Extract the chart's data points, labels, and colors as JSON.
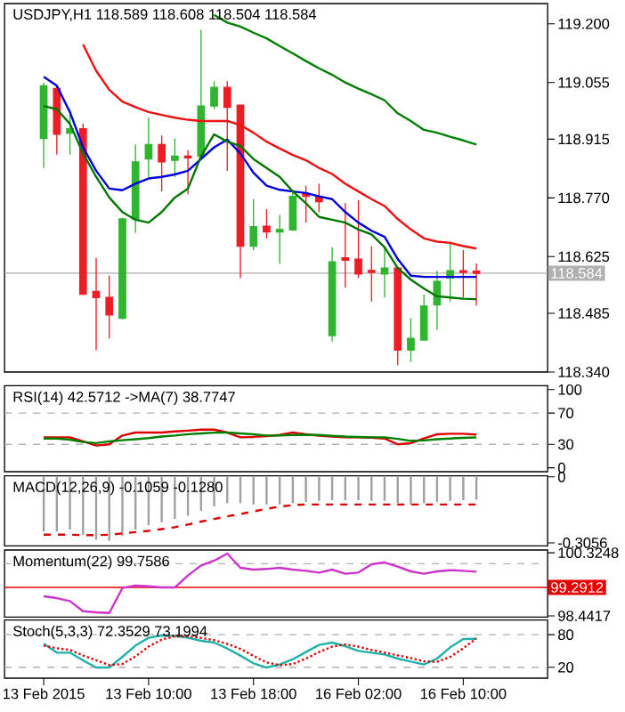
{
  "chart_data": [
    {
      "type": "candlestick",
      "title": "USDJPY,H1  118.589 118.608 118.504 118.584",
      "categories": [
        null,
        null,
        null,
        null,
        null,
        null,
        null,
        null,
        null,
        null,
        null,
        null,
        null,
        null,
        null,
        null,
        null,
        null,
        null,
        null,
        null,
        null,
        null,
        null,
        null,
        null,
        null,
        null,
        null,
        null,
        null,
        null,
        null,
        null
      ],
      "ohlc": [
        [
          118.917,
          119.054,
          118.844,
          119.047
        ],
        [
          119.04,
          119.047,
          118.877,
          118.927
        ],
        [
          118.93,
          118.989,
          118.877,
          118.941
        ],
        [
          118.941,
          118.953,
          118.53,
          118.532
        ],
        [
          118.539,
          118.622,
          118.394,
          118.524
        ],
        [
          118.524,
          118.578,
          118.423,
          118.481
        ],
        [
          118.473,
          118.721,
          118.47,
          118.718
        ],
        [
          118.718,
          118.902,
          118.684,
          118.859
        ],
        [
          118.866,
          118.968,
          118.822,
          118.902
        ],
        [
          118.902,
          118.924,
          118.786,
          118.859
        ],
        [
          118.863,
          118.917,
          118.822,
          118.873
        ],
        [
          118.873,
          118.888,
          118.779,
          118.869
        ],
        [
          118.873,
          119.185,
          118.869,
          118.997
        ],
        [
          118.997,
          119.058,
          118.989,
          119.043
        ],
        [
          119.043,
          119.058,
          118.837,
          118.994
        ],
        [
          118.999,
          118.999,
          118.572,
          118.651
        ],
        [
          118.651,
          118.767,
          118.641,
          118.699
        ],
        [
          118.7,
          118.742,
          118.67,
          118.686
        ],
        [
          118.686,
          118.728,
          118.607,
          118.692
        ],
        [
          118.691,
          118.786,
          118.689,
          118.774
        ],
        [
          118.781,
          118.8,
          118.709,
          118.774
        ],
        [
          118.774,
          118.805,
          118.735,
          118.761
        ],
        [
          118.43,
          118.648,
          118.415,
          118.612
        ],
        [
          118.622,
          118.757,
          118.549,
          118.616
        ],
        [
          118.619,
          118.764,
          118.572,
          118.582
        ],
        [
          118.591,
          118.651,
          118.514,
          118.586
        ],
        [
          118.582,
          118.651,
          118.524,
          118.597
        ],
        [
          118.597,
          118.597,
          118.357,
          118.394
        ],
        [
          118.394,
          118.473,
          118.365,
          118.423
        ],
        [
          118.419,
          118.532,
          118.419,
          118.503
        ],
        [
          118.506,
          118.59,
          118.444,
          118.564
        ],
        [
          118.572,
          118.662,
          118.514,
          118.59
        ],
        [
          118.59,
          118.641,
          118.524,
          118.586
        ],
        [
          118.589,
          118.608,
          118.504,
          118.584
        ]
      ],
      "colors": [
        "#2fb52f",
        "#ee1c24",
        "#2fb52f",
        "#ee1c24",
        "#ee1c24",
        "#ee1c24",
        "#2fb52f",
        "#2fb52f",
        "#2fb52f",
        "#ee1c24",
        "#2fb52f",
        "#ee1c24",
        "#2fb52f",
        "#2fb52f",
        "#ee1c24",
        "#ee1c24",
        "#2fb52f",
        "#ee1c24",
        "#2fb52f",
        "#2fb52f",
        "#ee1c24",
        "#ee1c24",
        "#2fb52f",
        "#ee1c24",
        "#ee1c24",
        "#ee1c24",
        "#2fb52f",
        "#ee1c24",
        "#2fb52f",
        "#2fb52f",
        "#2fb52f",
        "#2fb52f",
        "#ee1c24",
        "#ee1c24"
      ],
      "series": [
        {
          "type": "line",
          "color": "#ee1111",
          "values": [
            null,
            null,
            null,
            119.149,
            119.084,
            119.037,
            119.008,
            118.994,
            118.982,
            118.975,
            118.968,
            118.963,
            118.96,
            118.96,
            118.96,
            118.95,
            118.931,
            118.909,
            118.892,
            118.876,
            118.863,
            118.844,
            118.829,
            118.805,
            118.786,
            118.767,
            118.75,
            118.718,
            118.692,
            118.67,
            118.662,
            118.659,
            118.651,
            118.645
          ]
        },
        {
          "type": "line",
          "color": "#0000dd",
          "values": [
            119.069,
            119.047,
            118.982,
            118.895,
            118.837,
            118.793,
            118.789,
            118.805,
            118.818,
            118.822,
            118.828,
            118.837,
            118.866,
            118.895,
            118.914,
            118.88,
            118.832,
            118.8,
            118.79,
            118.786,
            118.782,
            118.774,
            118.767,
            118.735,
            118.709,
            118.689,
            118.674,
            118.619,
            118.578,
            118.575,
            118.575,
            118.575,
            118.575,
            118.575
          ]
        },
        {
          "type": "line",
          "color": "#007700",
          "values": [
            118.997,
            118.989,
            118.953,
            118.88,
            118.822,
            118.771,
            118.735,
            118.716,
            118.709,
            118.735,
            118.771,
            118.793,
            118.873,
            118.927,
            118.909,
            118.898,
            118.866,
            118.844,
            118.822,
            118.786,
            118.757,
            118.723,
            118.716,
            118.709,
            118.692,
            118.68,
            118.648,
            118.597,
            118.568,
            118.546,
            118.527,
            118.524,
            118.521,
            118.52
          ]
        },
        {
          "type": "line",
          "color": "#008000",
          "values": [
            null,
            null,
            null,
            null,
            null,
            null,
            null,
            null,
            null,
            null,
            null,
            null,
            null,
            119.222,
            119.203,
            119.193,
            119.178,
            119.164,
            119.145,
            119.127,
            119.108,
            119.09,
            119.074,
            119.055,
            119.04,
            119.026,
            119.011,
            118.979,
            118.96,
            118.938,
            118.931,
            118.921,
            118.912,
            118.902
          ]
        }
      ],
      "ylim": [
        118.34,
        119.25
      ],
      "yticks": [
        {
          "value": 118.34,
          "label": "118.340"
        },
        {
          "value": 118.485,
          "label": "118.485"
        },
        {
          "value": 118.625,
          "label": "118.625"
        },
        {
          "value": 118.77,
          "label": "118.770"
        },
        {
          "value": 118.915,
          "label": "118.915"
        },
        {
          "value": 119.055,
          "label": "119.055"
        },
        {
          "value": 119.2,
          "label": "119.200"
        }
      ],
      "ref_lines": [
        {
          "axis": "y",
          "value": 118.584,
          "label": "118.584",
          "color": "#b0b0b0"
        }
      ],
      "tick_labels": "y"
    },
    {
      "type": "line",
      "title": "RSI(14) 42.5712  ->MA(7) 38.7747",
      "categories": [
        null,
        null,
        null,
        null,
        null,
        null,
        null,
        null,
        null,
        null,
        null,
        null,
        null,
        null,
        null,
        null,
        null,
        null,
        null,
        null,
        null,
        null,
        null,
        null,
        null,
        null,
        null,
        null,
        null,
        null,
        null,
        null,
        null,
        null
      ],
      "series": [
        {
          "color": "#dd0000",
          "values": [
            39.0,
            39.0,
            39.0,
            33.8,
            28.5,
            30.0,
            41.3,
            45.1,
            45.1,
            45.1,
            46.5,
            47.5,
            48.8,
            48.8,
            45.1,
            39.0,
            39.5,
            40.6,
            42.0,
            45.1,
            42.9,
            41.0,
            40.0,
            39.0,
            39.0,
            38.5,
            37.5,
            30.0,
            31.6,
            37.5,
            42.9,
            43.6,
            43.6,
            42.6
          ]
        },
        {
          "color": "#008000",
          "values": [
            37.5,
            37.5,
            36.0,
            33.0,
            31.6,
            33.8,
            35.3,
            36.5,
            38.0,
            40.0,
            41.3,
            43.0,
            44.0,
            45.0,
            45.1,
            44.0,
            42.9,
            41.3,
            41.3,
            42.0,
            42.3,
            42.0,
            41.0,
            40.0,
            39.5,
            39.0,
            39.0,
            37.0,
            34.5,
            35.0,
            36.5,
            37.5,
            38.3,
            38.8
          ]
        }
      ],
      "ylim": [
        -5,
        105
      ],
      "yticks": [
        0,
        30,
        70,
        100
      ],
      "ref_lines": [
        {
          "axis": "y",
          "value": 70,
          "color": "#b0b0b0",
          "line_style": "dashed"
        },
        {
          "axis": "y",
          "value": 30,
          "color": "#b0b0b0",
          "line_style": "dashed"
        }
      ],
      "tick_labels": "y"
    },
    {
      "type": "bar",
      "title": "MACD(12,26,9) -0.1059 -0.1280",
      "categories": [
        null,
        null,
        null,
        null,
        null,
        null,
        null,
        null,
        null,
        null,
        null,
        null,
        null,
        null,
        null,
        null,
        null,
        null,
        null,
        null,
        null,
        null,
        null,
        null,
        null,
        null,
        null,
        null,
        null,
        null,
        null,
        null,
        null,
        null
      ],
      "series": [
        {
          "color": "#a0a0a0",
          "values": [
            -0.253,
            -0.253,
            -0.244,
            -0.268,
            -0.291,
            -0.297,
            -0.274,
            -0.244,
            -0.224,
            -0.21,
            -0.195,
            -0.18,
            -0.157,
            -0.137,
            -0.122,
            -0.122,
            -0.128,
            -0.128,
            -0.128,
            -0.122,
            -0.116,
            -0.111,
            -0.108,
            -0.108,
            -0.108,
            -0.111,
            -0.111,
            -0.122,
            -0.128,
            -0.122,
            -0.116,
            -0.111,
            -0.108,
            -0.1059
          ]
        },
        {
          "type": "line",
          "line_style": "dashed",
          "color": "#dd0000",
          "values": [
            -0.268,
            -0.268,
            -0.268,
            -0.27,
            -0.27,
            -0.268,
            -0.262,
            -0.256,
            -0.25,
            -0.242,
            -0.233,
            -0.221,
            -0.207,
            -0.195,
            -0.183,
            -0.172,
            -0.16,
            -0.148,
            -0.138,
            -0.131,
            -0.128,
            -0.128,
            -0.128,
            -0.128,
            -0.128,
            -0.128,
            -0.128,
            -0.128,
            -0.128,
            -0.128,
            -0.128,
            -0.128,
            -0.128,
            -0.128
          ]
        }
      ],
      "ylim": [
        -0.32,
        0.005
      ],
      "yticks": [
        -0.3056,
        0
      ],
      "tick_labels": "y"
    },
    {
      "type": "line",
      "title": "Momentum(22) 99.7586",
      "categories": [
        null,
        null,
        null,
        null,
        null,
        null,
        null,
        null,
        null,
        null,
        null,
        null,
        null,
        null,
        null,
        null,
        null,
        null,
        null,
        null,
        null,
        null,
        null,
        null,
        null,
        null,
        null,
        null,
        null,
        null,
        null,
        null,
        null,
        null
      ],
      "series": [
        {
          "color": "#cc33cc",
          "values": [
            99.025,
            98.972,
            98.884,
            98.582,
            98.547,
            98.529,
            99.274,
            99.344,
            99.327,
            99.291,
            99.291,
            99.646,
            99.947,
            100.089,
            100.301,
            99.876,
            99.823,
            99.841,
            99.876,
            99.823,
            99.787,
            99.734,
            99.823,
            99.699,
            99.734,
            99.982,
            100.035,
            99.911,
            99.77,
            99.699,
            99.77,
            99.805,
            99.787,
            99.759
          ]
        }
      ],
      "ylim": [
        98.405,
        100.407
      ],
      "yticks": [
        98.4417,
        100.3248
      ],
      "ref_lines": [
        {
          "axis": "y",
          "value": 100,
          "color": "#b0b0b0",
          "line_style": "dashed"
        },
        {
          "axis": "y",
          "value": 99.2912,
          "label": "99.2912",
          "color": "#e60000"
        }
      ],
      "tick_labels": "y"
    },
    {
      "type": "line",
      "title": "Stoch(5,3,3) 72.3529 73.1994",
      "categories": [
        "13 Feb 2015",
        null,
        null,
        null,
        null,
        null,
        null,
        null,
        "13 Feb 10:00",
        null,
        null,
        null,
        null,
        null,
        null,
        null,
        "13 Feb 18:00",
        null,
        null,
        null,
        null,
        null,
        null,
        null,
        "16 Feb 02:00",
        null,
        null,
        null,
        null,
        null,
        null,
        null,
        "16 Feb 10:00",
        null
      ],
      "series": [
        {
          "color": "#20b2aa",
          "values": [
            63.3,
            46.9,
            46.9,
            32.7,
            19.6,
            19.6,
            39.3,
            60.0,
            74.2,
            78.5,
            77.5,
            74.2,
            68.7,
            65.5,
            54.5,
            41.5,
            27.3,
            19.6,
            25.1,
            34.9,
            48.0,
            61.1,
            65.5,
            58.9,
            50.2,
            46.9,
            43.6,
            36.0,
            30.5,
            25.1,
            36.0,
            56.7,
            72.0,
            72.4
          ]
        },
        {
          "color": "#dd0000",
          "line_style": "dotted",
          "values": [
            60,
            55,
            52,
            42,
            33,
            24,
            26,
            40,
            58,
            71,
            77,
            77,
            74,
            70,
            63,
            54,
            41,
            29,
            24,
            26,
            36,
            48,
            58,
            62,
            58,
            52,
            47,
            42,
            37,
            31,
            30,
            39,
            55,
            73.2
          ]
        }
      ],
      "ylim": [
        0,
        107
      ],
      "yticks": [
        20,
        80
      ],
      "ref_lines": [
        {
          "axis": "y",
          "value": 80,
          "color": "#b0b0b0",
          "line_style": "dashed"
        },
        {
          "axis": "y",
          "value": 20,
          "color": "#b0b0b0",
          "line_style": "dashed"
        }
      ]
    }
  ]
}
